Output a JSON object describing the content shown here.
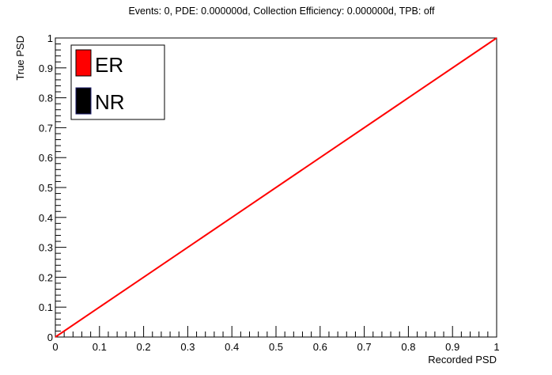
{
  "chart_data": {
    "type": "line",
    "title": "Events: 0, PDE: 0.000000d, Collection Efficiency: 0.000000d, TPB: off",
    "xlabel": "Recorded PSD",
    "ylabel": "True PSD",
    "xlim": [
      0,
      1
    ],
    "ylim": [
      0,
      1
    ],
    "x_ticks": [
      "0",
      "0.1",
      "0.2",
      "0.3",
      "0.4",
      "0.5",
      "0.6",
      "0.7",
      "0.8",
      "0.9",
      "1"
    ],
    "y_ticks": [
      "0",
      "0.1",
      "0.2",
      "0.3",
      "0.4",
      "0.5",
      "0.6",
      "0.7",
      "0.8",
      "0.9",
      "1"
    ],
    "grid": false,
    "legend": {
      "placement": "top-left",
      "entries": [
        {
          "label": "ER",
          "color": "#ff0000"
        },
        {
          "label": "NR",
          "color": "#000000"
        }
      ]
    },
    "series": [
      {
        "name": "ER",
        "color": "#ff0000",
        "x": [
          0,
          0.2,
          0.4,
          0.6,
          0.8,
          1.0
        ],
        "y": [
          0,
          0.2,
          0.4,
          0.6,
          0.8,
          1.0
        ]
      }
    ]
  }
}
